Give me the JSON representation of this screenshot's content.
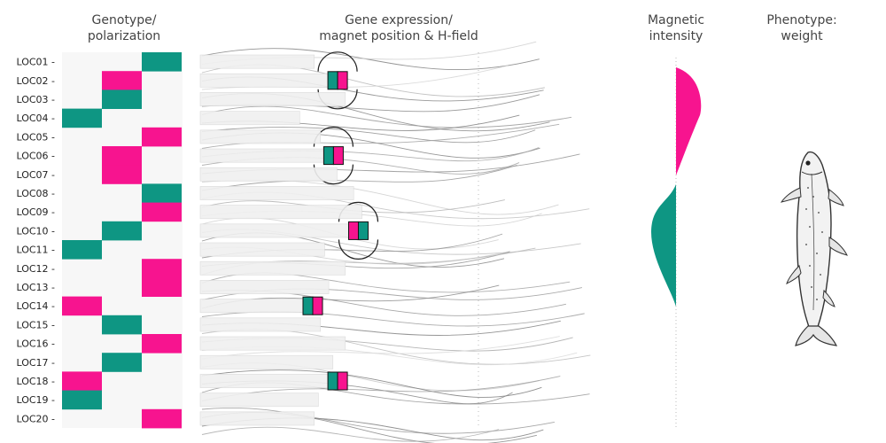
{
  "titles": {
    "genotype": "Genotype/\npolarization",
    "expression": "Gene expression/\nmagnet position & H-field",
    "magnetic": "Magnetic\nintensity",
    "phenotype": "Phenotype:\nweight"
  },
  "colors": {
    "teal": "#0e9683",
    "magenta": "#f7148f",
    "grid_bg": "#f7f7f7",
    "field_line": "#9a9a9a"
  },
  "loci": [
    {
      "label": "LOC01",
      "genotype": 2,
      "polarization": "teal"
    },
    {
      "label": "LOC02",
      "genotype": 1,
      "polarization": "magenta"
    },
    {
      "label": "LOC03",
      "genotype": 1,
      "polarization": "teal"
    },
    {
      "label": "LOC04",
      "genotype": 0,
      "polarization": "teal"
    },
    {
      "label": "LOC05",
      "genotype": 2,
      "polarization": "magenta"
    },
    {
      "label": "LOC06",
      "genotype": 1,
      "polarization": "magenta"
    },
    {
      "label": "LOC07",
      "genotype": 1,
      "polarization": "magenta"
    },
    {
      "label": "LOC08",
      "genotype": 2,
      "polarization": "teal"
    },
    {
      "label": "LOC09",
      "genotype": 2,
      "polarization": "magenta"
    },
    {
      "label": "LOC10",
      "genotype": 1,
      "polarization": "teal"
    },
    {
      "label": "LOC11",
      "genotype": 0,
      "polarization": "teal"
    },
    {
      "label": "LOC12",
      "genotype": 2,
      "polarization": "magenta"
    },
    {
      "label": "LOC13",
      "genotype": 2,
      "polarization": "magenta"
    },
    {
      "label": "LOC14",
      "genotype": 0,
      "polarization": "magenta"
    },
    {
      "label": "LOC15",
      "genotype": 1,
      "polarization": "teal"
    },
    {
      "label": "LOC16",
      "genotype": 2,
      "polarization": "magenta"
    },
    {
      "label": "LOC17",
      "genotype": 1,
      "polarization": "teal"
    },
    {
      "label": "LOC18",
      "genotype": 0,
      "polarization": "magenta"
    },
    {
      "label": "LOC19",
      "genotype": 0,
      "polarization": "teal"
    },
    {
      "label": "LOC20",
      "genotype": 2,
      "polarization": "magenta"
    }
  ],
  "expression_bars": [
    {
      "locus": "LOC01",
      "level": 0.55
    },
    {
      "locus": "LOC02",
      "level": 0.62
    },
    {
      "locus": "LOC03",
      "level": 0.7
    },
    {
      "locus": "LOC04",
      "level": 0.48
    },
    {
      "locus": "LOC05",
      "level": 0.58
    },
    {
      "locus": "LOC06",
      "level": 0.6
    },
    {
      "locus": "LOC07",
      "level": 0.66
    },
    {
      "locus": "LOC08",
      "level": 0.74
    },
    {
      "locus": "LOC09",
      "level": 0.78
    },
    {
      "locus": "LOC10",
      "level": 0.72
    },
    {
      "locus": "LOC11",
      "level": 0.6
    },
    {
      "locus": "LOC12",
      "level": 0.7
    },
    {
      "locus": "LOC13",
      "level": 0.62
    },
    {
      "locus": "LOC14",
      "level": 0.5
    },
    {
      "locus": "LOC15",
      "level": 0.58
    },
    {
      "locus": "LOC16",
      "level": 0.7
    },
    {
      "locus": "LOC17",
      "level": 0.64
    },
    {
      "locus": "LOC18",
      "level": 0.62
    },
    {
      "locus": "LOC19",
      "level": 0.57
    },
    {
      "locus": "LOC20",
      "level": 0.55
    }
  ],
  "magnets": [
    {
      "locus": "LOC02",
      "order": [
        "teal",
        "magenta"
      ],
      "strength": 1.0
    },
    {
      "locus": "LOC06",
      "order": [
        "teal",
        "magenta"
      ],
      "strength": 1.0
    },
    {
      "locus": "LOC10",
      "order": [
        "magenta",
        "teal"
      ],
      "strength": 1.0
    },
    {
      "locus": "LOC14",
      "order": [
        "teal",
        "magenta"
      ],
      "strength": 0.35
    },
    {
      "locus": "LOC18",
      "order": [
        "teal",
        "magenta"
      ],
      "strength": 0.35
    }
  ],
  "intensity": {
    "upper_lobe_color": "magenta",
    "lower_lobe_color": "teal"
  }
}
